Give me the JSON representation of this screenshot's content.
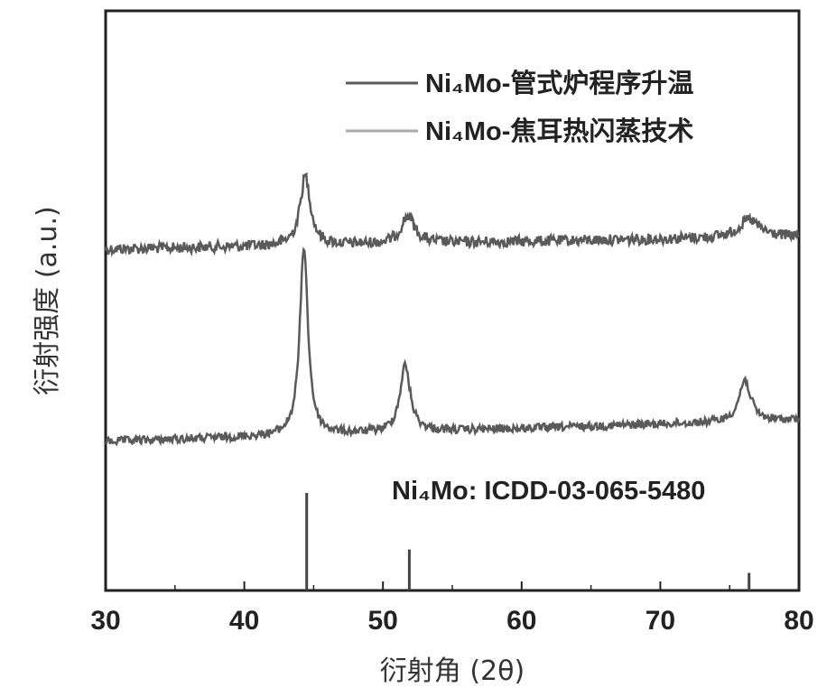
{
  "chart_data": {
    "type": "line",
    "xlabel": "衍射角 (2θ)",
    "ylabel": "衍射强度 (a.u.)",
    "xlim": [
      30,
      80
    ],
    "xticks": [
      "30",
      "40",
      "50",
      "60",
      "70",
      "80"
    ],
    "legend_position": "top-right",
    "legend": [
      {
        "label": "Ni₄Mo-管式炉程序升温",
        "color": "#5a5a5a"
      },
      {
        "label": "Ni₄Mo-焦耳热闪蒸技术",
        "color": "#aaaaaa"
      }
    ],
    "series": [
      {
        "name": "Ni₄Mo-管式炉程序升温",
        "color": "#5a5a5a",
        "peaks": [
          {
            "x": 44.4,
            "height": 0.55,
            "width": 0.45
          },
          {
            "x": 51.8,
            "height": 0.22,
            "width": 0.6
          },
          {
            "x": 76.4,
            "height": 0.14,
            "width": 0.9
          }
        ]
      },
      {
        "name": "Ni₄Mo-焦耳热闪蒸技术",
        "color": "#5a5a5a",
        "peaks": [
          {
            "x": 44.3,
            "height": 1.0,
            "width": 0.35
          },
          {
            "x": 51.6,
            "height": 0.35,
            "width": 0.45
          },
          {
            "x": 76.1,
            "height": 0.22,
            "width": 0.5
          }
        ]
      }
    ],
    "reference": {
      "label": "Ni₄Mo: ICDD-03-065-5480",
      "lines": [
        {
          "x": 44.5,
          "intensity": 1.0
        },
        {
          "x": 51.9,
          "intensity": 0.42
        },
        {
          "x": 76.4,
          "intensity": 0.18
        }
      ]
    }
  }
}
